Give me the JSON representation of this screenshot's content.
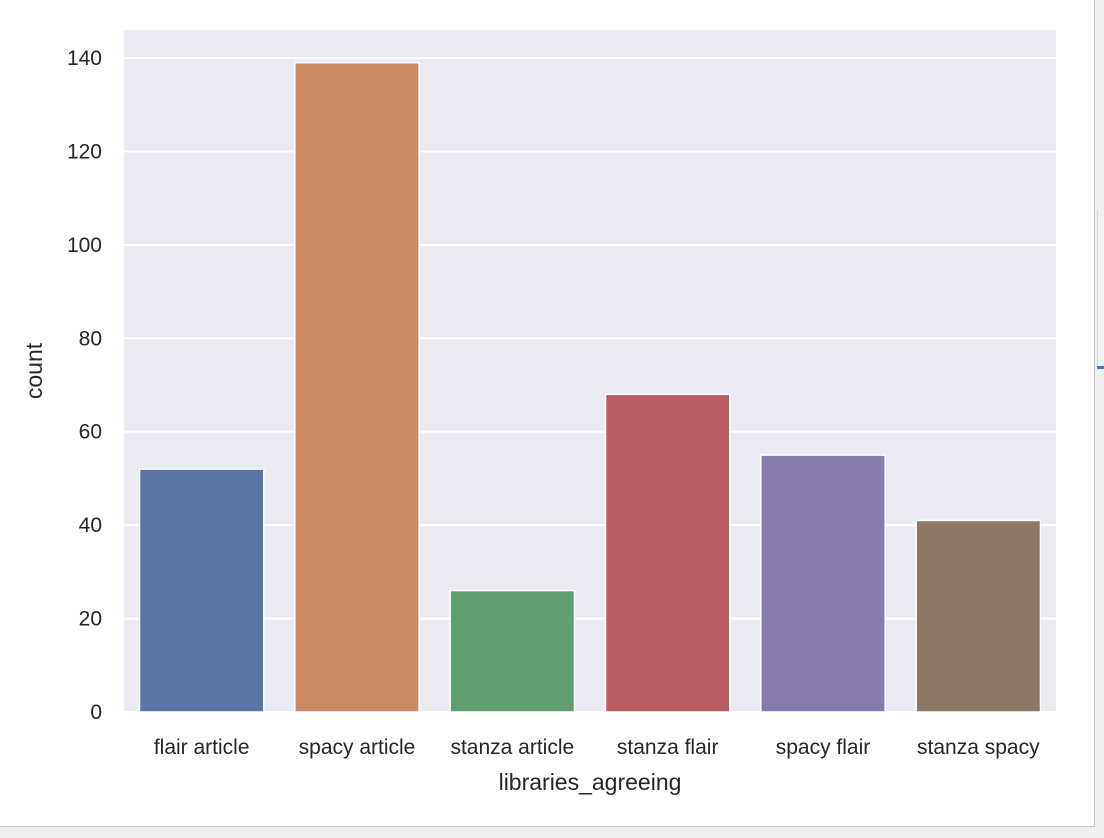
{
  "chart_data": {
    "type": "bar",
    "categories": [
      "flair article",
      "spacy article",
      "stanza article",
      "stanza flair",
      "spacy flair",
      "stanza spacy"
    ],
    "values": [
      52,
      139,
      26,
      68,
      55,
      41
    ],
    "colors": [
      "#5975a4",
      "#cc8963",
      "#5f9e6e",
      "#b55d60",
      "#857aab",
      "#8d7866"
    ],
    "xlabel": "libraries_agreeing",
    "ylabel": "count",
    "ylim": [
      0,
      146
    ],
    "yticks": [
      0,
      20,
      40,
      60,
      80,
      100,
      120,
      140
    ],
    "grid": true,
    "background": "#eaeaf2"
  }
}
